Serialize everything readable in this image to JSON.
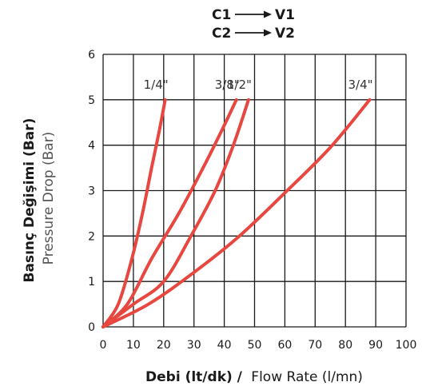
{
  "header": {
    "line1_from": "C1",
    "line1_to": "V1",
    "line2_from": "C2",
    "line2_to": "V2"
  },
  "colors": {
    "curve": "#e8473f",
    "grid": "#1a1a1a",
    "text": "#1a1a1a"
  },
  "chart_data": {
    "type": "line",
    "ylabel_bold": "Basınç Değişimi (Bar)",
    "ylabel_light": "Pressure Drop (Bar)",
    "xlabel_bold": "Debi (lt/dk) /",
    "xlabel_light": "Flow Rate (l/mn)",
    "xlim": [
      0,
      100
    ],
    "ylim": [
      0,
      6
    ],
    "xticks": [
      "0",
      "10",
      "20",
      "30",
      "40",
      "50",
      "60",
      "70",
      "80",
      "90",
      "100"
    ],
    "yticks": [
      "0",
      "1",
      "2",
      "3",
      "4",
      "5",
      "6"
    ],
    "grid": true,
    "series": [
      {
        "name": "1/4\"",
        "x": [
          0,
          5,
          9.5,
          13,
          16,
          18.5,
          20.5
        ],
        "y": [
          0,
          0.5,
          1.5,
          2.5,
          3.5,
          4.3,
          5.0
        ]
      },
      {
        "name": "3/8\"",
        "x": [
          0,
          8,
          16,
          25,
          33,
          39,
          44
        ],
        "y": [
          0,
          0.5,
          1.5,
          2.5,
          3.5,
          4.3,
          5.0
        ]
      },
      {
        "name": "1/2\"",
        "x": [
          0,
          10,
          20,
          29,
          37,
          43,
          48
        ],
        "y": [
          0,
          0.5,
          1.0,
          2.0,
          3.0,
          4.0,
          5.0
        ]
      },
      {
        "name": "3/4\"",
        "x": [
          0,
          15,
          30,
          45,
          60,
          75,
          88
        ],
        "y": [
          0,
          0.5,
          1.2,
          2.0,
          2.95,
          3.95,
          5.0
        ]
      }
    ]
  }
}
